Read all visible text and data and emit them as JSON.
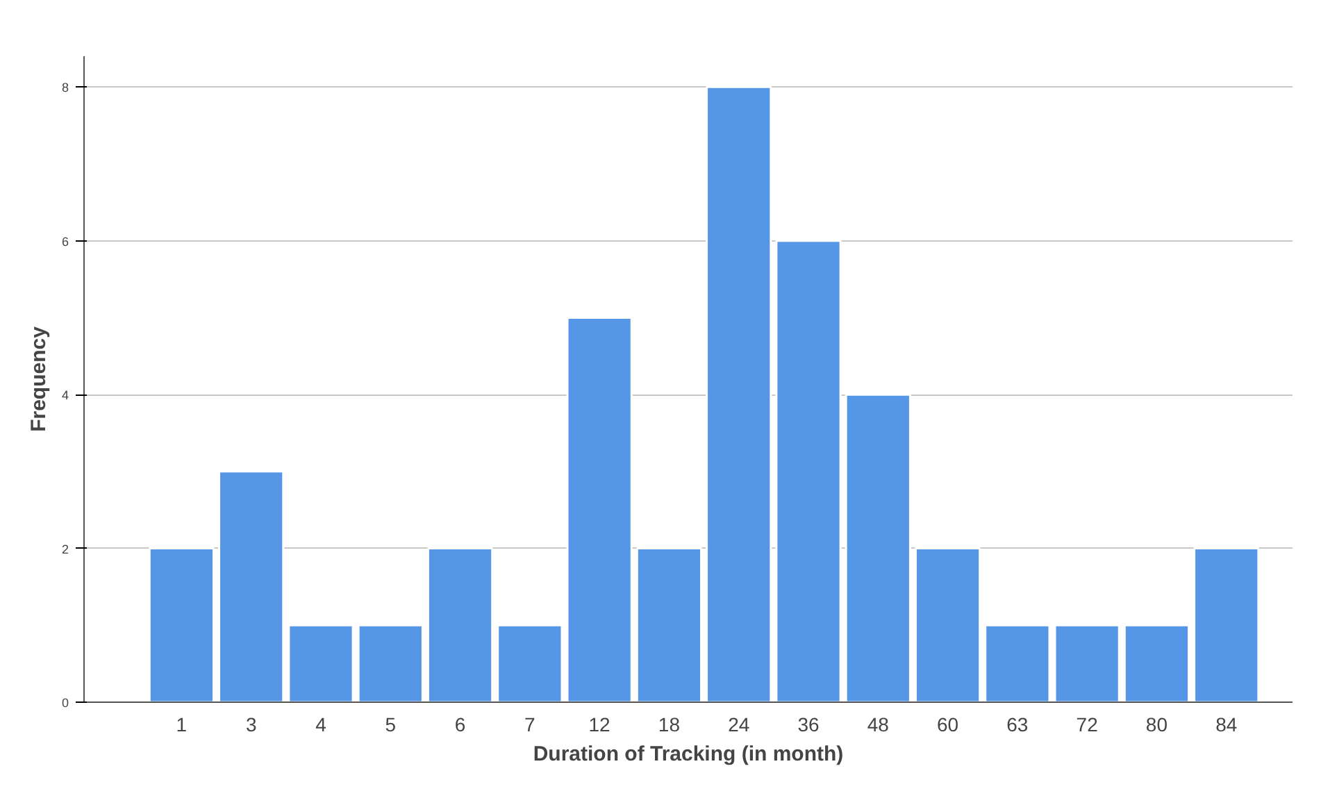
{
  "chart_data": {
    "type": "bar",
    "xlabel": "Duration of Tracking (in month)",
    "ylabel": "Frequency",
    "categories": [
      "1",
      "3",
      "4",
      "5",
      "6",
      "7",
      "12",
      "18",
      "24",
      "36",
      "48",
      "60",
      "63",
      "72",
      "80",
      "84"
    ],
    "values": [
      2,
      3,
      1,
      1,
      2,
      1,
      5,
      2,
      8,
      6,
      4,
      2,
      1,
      1,
      1,
      2
    ],
    "color": "#5596e6",
    "ylim": [
      0,
      8.4
    ],
    "yticks": [
      0,
      2,
      4,
      6,
      8
    ],
    "grid": "y"
  }
}
